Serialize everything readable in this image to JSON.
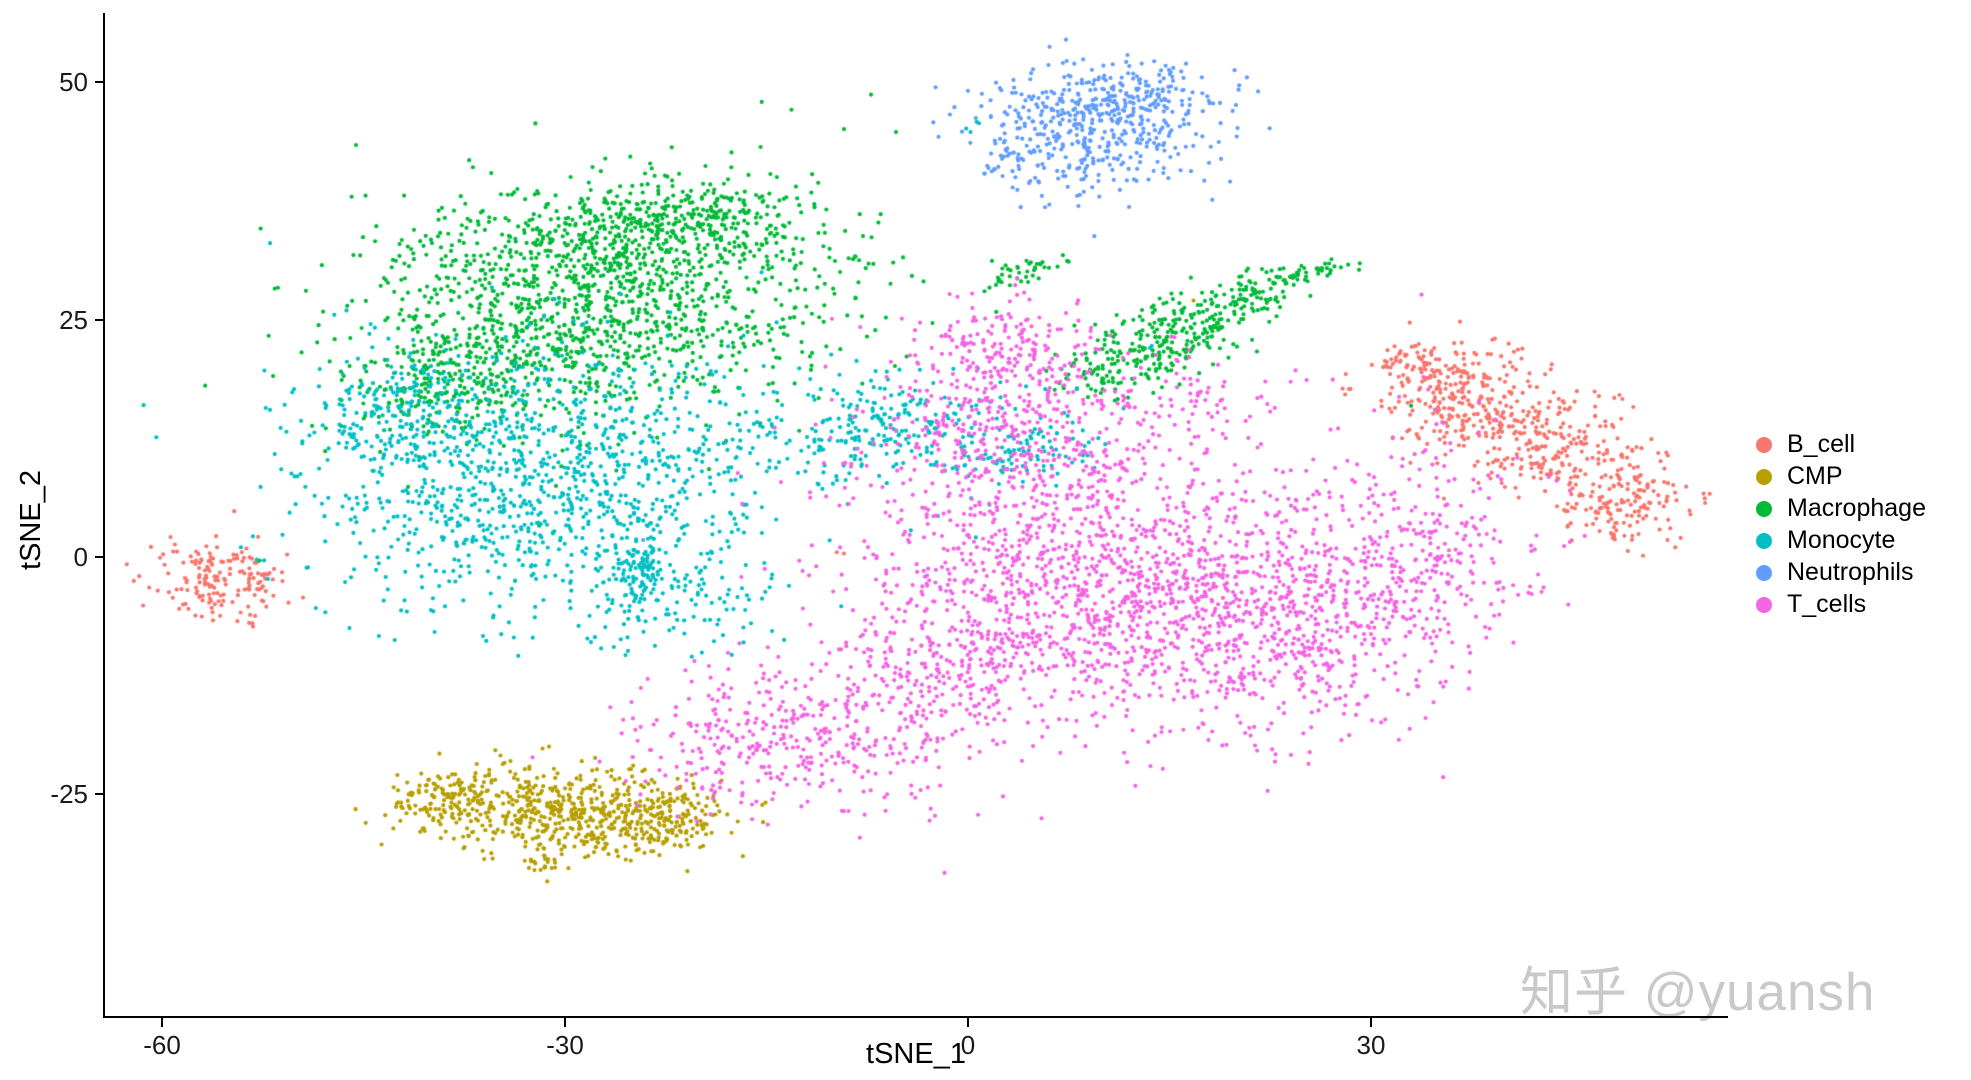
{
  "figure": {
    "x_axis": {
      "label": "tSNE_1",
      "ticks": [
        "-60",
        "-30",
        "0",
        "30"
      ]
    },
    "y_axis": {
      "label": "tSNE_2",
      "ticks": [
        "50",
        "25",
        "0",
        "-25"
      ]
    },
    "watermark": "知乎 @yuansh"
  },
  "legend": {
    "items": [
      {
        "label": "B_cell",
        "color": "#F8766D"
      },
      {
        "label": "CMP",
        "color": "#B79F00"
      },
      {
        "label": "Macrophage",
        "color": "#00BA38"
      },
      {
        "label": "Monocyte",
        "color": "#00BFC4"
      },
      {
        "label": "Neutrophils",
        "color": "#619CFF"
      },
      {
        "label": "T_cells",
        "color": "#F564E3"
      }
    ]
  },
  "chart_data": {
    "type": "scatter",
    "title": "",
    "xlabel": "tSNE_1",
    "ylabel": "tSNE_2",
    "x_ticks": [
      -60,
      -30,
      0,
      30
    ],
    "y_ticks": [
      50,
      25,
      0,
      -25
    ],
    "x_domain": [
      -64.3,
      56.6
    ],
    "y_domain": [
      -48.5,
      57.1
    ],
    "grid": false,
    "legend_position": "right",
    "point_radius_px": 2.1,
    "blob_format": [
      "center_x",
      "center_y",
      "sigma_x",
      "sigma_y",
      "n_points",
      "rotation_deg"
    ],
    "series": [
      {
        "name": "B_cell",
        "color": "#F8766D",
        "blobs": [
          [
            36.5,
            17.5,
            3,
            2.5,
            220,
            0
          ],
          [
            43,
            12,
            4,
            3,
            280,
            -20
          ],
          [
            49,
            5.5,
            2.2,
            2,
            140,
            -15
          ],
          [
            33,
            20.5,
            1.5,
            1.2,
            50,
            0
          ],
          [
            -55.5,
            -2.5,
            2.3,
            2.2,
            170,
            -10
          ],
          [
            -9.5,
            0.5,
            0.3,
            0.3,
            2,
            0
          ]
        ]
      },
      {
        "name": "CMP",
        "color": "#B79F00",
        "blobs": [
          [
            -30,
            -27,
            5,
            2.5,
            520,
            -5
          ],
          [
            -39,
            -25.5,
            2,
            1.5,
            110,
            0
          ],
          [
            -22.5,
            -27.5,
            2.5,
            2,
            130,
            -15
          ],
          [
            -31.5,
            -32,
            0.8,
            1.2,
            22,
            0
          ],
          [
            16.8,
            26.8,
            0.2,
            0.2,
            1,
            0
          ]
        ]
      },
      {
        "name": "Macrophage",
        "color": "#00BA38",
        "blobs": [
          [
            -27,
            27,
            9,
            6,
            1050,
            0
          ],
          [
            -24,
            33.5,
            7,
            2.5,
            330,
            0
          ],
          [
            -20,
            36.5,
            4,
            1.6,
            130,
            0
          ],
          [
            -40,
            18,
            3.5,
            3,
            170,
            0
          ],
          [
            -33,
            22,
            5,
            3.5,
            240,
            0
          ],
          [
            13,
            21.5,
            2.2,
            2,
            110,
            25
          ],
          [
            17,
            24.5,
            2.5,
            2,
            130,
            25
          ],
          [
            21.5,
            27.5,
            2,
            1.5,
            90,
            20
          ],
          [
            9.5,
            19,
            1.5,
            1.5,
            50,
            0
          ],
          [
            25.5,
            30,
            1.5,
            0.4,
            35,
            15
          ],
          [
            4,
            30,
            1.6,
            0.6,
            40,
            28
          ],
          [
            33,
            16.5,
            0.2,
            0.2,
            1,
            0
          ],
          [
            -13,
            45,
            4,
            2.5,
            7,
            0
          ],
          [
            -52.4,
            -0.3,
            0.2,
            0.2,
            1,
            0
          ]
        ]
      },
      {
        "name": "Monocyte",
        "color": "#00BFC4",
        "blobs": [
          [
            -32,
            8,
            8.5,
            7,
            1150,
            0
          ],
          [
            -43,
            15,
            3,
            3,
            150,
            0
          ],
          [
            -6,
            13.5,
            5.5,
            3,
            280,
            0
          ],
          [
            4,
            11,
            3,
            2,
            80,
            0
          ],
          [
            -21,
            -5,
            4,
            2.5,
            90,
            0
          ],
          [
            -24.5,
            -1.5,
            1.2,
            2,
            90,
            0
          ],
          [
            0.5,
            45.5,
            0.5,
            0.7,
            4,
            0
          ],
          [
            -52,
            33,
            0.2,
            0.2,
            1,
            0
          ],
          [
            13.5,
            22.5,
            0.3,
            0.3,
            2,
            0
          ],
          [
            -52.7,
            -0.6,
            0.2,
            0.2,
            1,
            0
          ]
        ]
      },
      {
        "name": "Neutrophils",
        "color": "#619CFF",
        "blobs": [
          [
            9,
            45.5,
            4.5,
            3.2,
            430,
            10
          ],
          [
            13,
            48.5,
            3,
            1.8,
            110,
            0
          ],
          [
            3.5,
            42,
            1.5,
            1.5,
            30,
            0
          ],
          [
            8,
            38,
            1,
            0.8,
            4,
            0
          ],
          [
            6,
            37,
            0.2,
            0.2,
            1,
            0
          ],
          [
            -24,
            2,
            0.2,
            0.2,
            1,
            0
          ]
        ]
      },
      {
        "name": "T_cells",
        "color": "#F564E3",
        "blobs": [
          [
            9,
            -2,
            9,
            8,
            1300,
            0
          ],
          [
            22,
            -7,
            7,
            6,
            600,
            0
          ],
          [
            33,
            0,
            5,
            5.5,
            300,
            0
          ],
          [
            3,
            13,
            5,
            5,
            350,
            0
          ],
          [
            3,
            21.5,
            3.5,
            3,
            180,
            0
          ],
          [
            -12,
            -19,
            6.5,
            4,
            400,
            0
          ],
          [
            -2,
            -12,
            4,
            3.5,
            150,
            0
          ],
          [
            16,
            16,
            3,
            2.5,
            60,
            0
          ],
          [
            -19.7,
            -24.8,
            0.4,
            0.3,
            3,
            0
          ],
          [
            34,
            13,
            1.5,
            3,
            8,
            0
          ]
        ]
      }
    ]
  }
}
